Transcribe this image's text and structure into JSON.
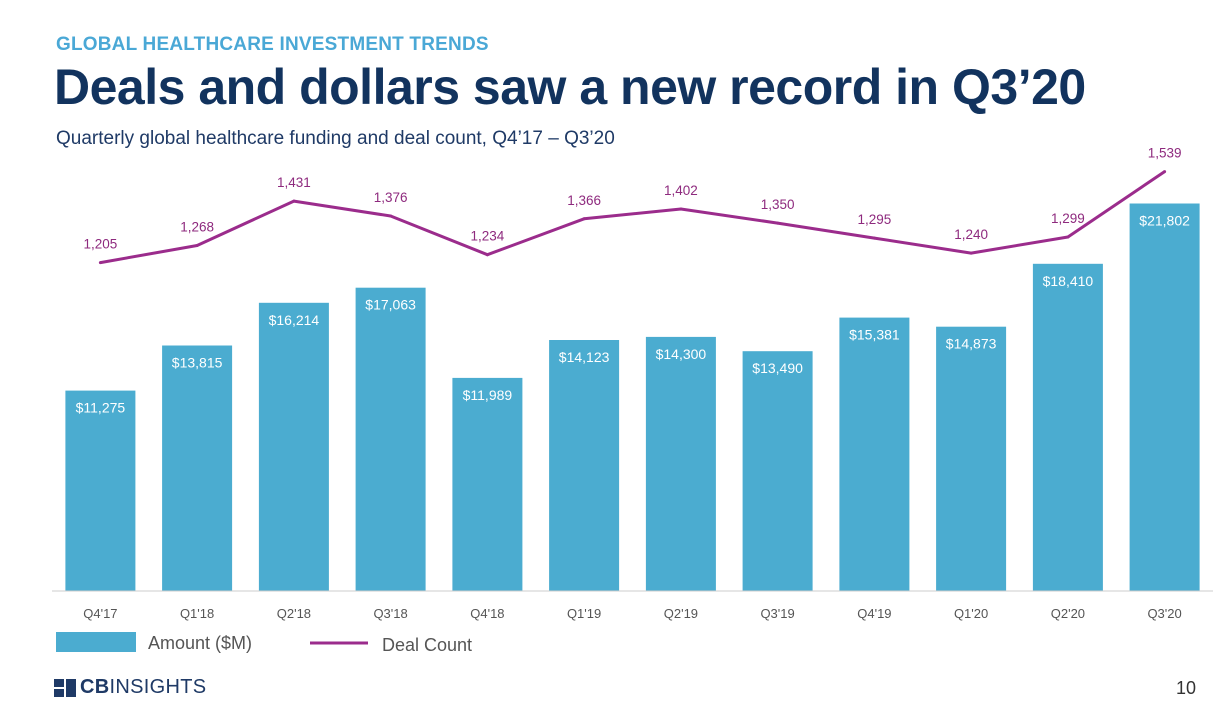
{
  "header": {
    "kicker": "GLOBAL HEALTHCARE INVESTMENT TRENDS",
    "title": "Deals and dollars saw a new record in Q3’20",
    "subtitle": "Quarterly global healthcare funding and deal count, Q4’17 – Q3’20"
  },
  "chart_data": {
    "type": "bar",
    "categories": [
      "Q4'17",
      "Q1'18",
      "Q2'18",
      "Q3'18",
      "Q4'18",
      "Q1'19",
      "Q2'19",
      "Q3'19",
      "Q4'19",
      "Q1'20",
      "Q2'20",
      "Q3'20"
    ],
    "series": [
      {
        "name": "Amount ($M)",
        "kind": "bar",
        "values": [
          11275,
          13815,
          16214,
          17063,
          11989,
          14123,
          14300,
          13490,
          15381,
          14873,
          18410,
          21802
        ],
        "labels": [
          "$11,275",
          "$13,815",
          "$16,214",
          "$17,063",
          "$11,989",
          "$14,123",
          "$14,300",
          "$13,490",
          "$15,381",
          "$14,873",
          "$18,410",
          "$21,802"
        ]
      },
      {
        "name": "Deal Count",
        "kind": "line",
        "values": [
          1205,
          1268,
          1431,
          1376,
          1234,
          1366,
          1402,
          1350,
          1295,
          1240,
          1299,
          1539
        ],
        "labels": [
          "1,205",
          "1,268",
          "1,431",
          "1,376",
          "1,234",
          "1,366",
          "1,402",
          "1,350",
          "1,295",
          "1,240",
          "1,299",
          "1,539"
        ]
      }
    ],
    "bar_axis_range": [
      0,
      22000
    ],
    "line_axis_range": [
      0,
      1600
    ],
    "grid": false,
    "legend_position": "bottom-left",
    "colors": {
      "bar": "#4bacd0",
      "line": "#9b2c8c",
      "line_label": "#8e2a7e",
      "axis": "#cccccc"
    }
  },
  "footer": {
    "logo_text_bold": "CB",
    "logo_text_light": "INSIGHTS",
    "page_number": "10"
  }
}
